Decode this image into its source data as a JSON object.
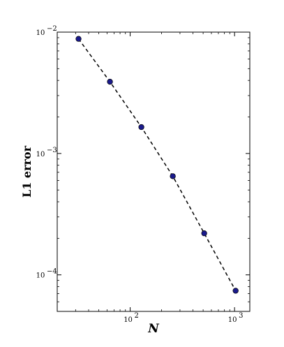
{
  "chart_data": {
    "type": "scatter",
    "title": "",
    "xlabel": "N",
    "ylabel": "L1  error",
    "x_scale": "log",
    "y_scale": "log",
    "xlim": [
      20,
      1400
    ],
    "ylim": [
      5e-05,
      0.01
    ],
    "grid": false,
    "legend": "none",
    "x_ticks": [
      {
        "value": 100,
        "base": "10",
        "exp": "2"
      },
      {
        "value": 1000,
        "base": "10",
        "exp": "3"
      }
    ],
    "y_ticks": [
      {
        "value": 0.01,
        "base": "10",
        "exp": "−2"
      },
      {
        "value": 0.001,
        "base": "10",
        "exp": "−3"
      },
      {
        "value": 0.0001,
        "base": "10",
        "exp": "−4"
      }
    ],
    "series": [
      {
        "x": [
          32,
          64,
          128,
          256,
          512,
          1024
        ],
        "y": [
          0.0088,
          0.0039,
          0.00165,
          0.00065,
          0.00022,
          7.4e-05
        ],
        "marker": "circle",
        "line": "dashed",
        "marker_color": "#1a1a8c",
        "line_color": "#000000"
      }
    ]
  }
}
